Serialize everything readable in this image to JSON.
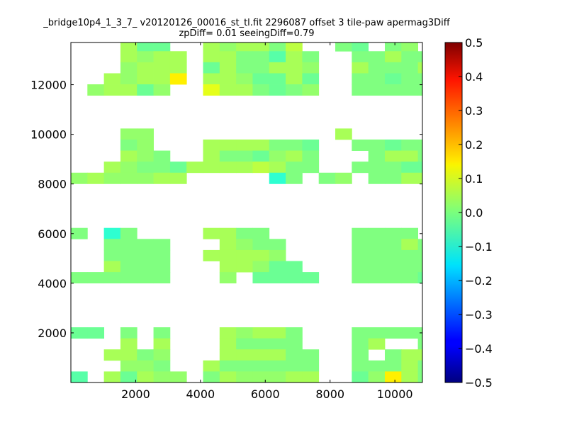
{
  "chart_data": {
    "type": "heatmap",
    "title": "_bridge10p4_1_3_7_ v20120126_00016_st_tl.fit 2296087 offset 3 tile-paw apermag3Diff",
    "subtitle": "zpDiff= 0.01 seeingDiff=0.79",
    "xlabel": "",
    "ylabel": "",
    "xlim": [
      0,
      10850
    ],
    "ylim": [
      0,
      13700
    ],
    "x_ticks": [
      "2000",
      "4000",
      "6000",
      "8000",
      "10000"
    ],
    "x_tick_values": [
      2000,
      4000,
      6000,
      8000,
      10000
    ],
    "y_ticks": [
      "2000",
      "4000",
      "6000",
      "8000",
      "10000",
      "12000"
    ],
    "y_tick_values": [
      2000,
      4000,
      6000,
      8000,
      10000,
      12000
    ],
    "colorbar": {
      "colormap": "jet",
      "vmin": -0.5,
      "vmax": 0.5,
      "ticks": [
        "0.5",
        "0.4",
        "0.3",
        "0.2",
        "0.1",
        "0.0",
        "−0.1",
        "−0.2",
        "−0.3",
        "−0.4",
        "−0.5"
      ],
      "tick_values": [
        0.5,
        0.4,
        0.3,
        0.2,
        0.1,
        0.0,
        -0.1,
        -0.2,
        -0.3,
        -0.4,
        -0.5
      ]
    },
    "grid": false,
    "cell_size": [
      510,
      445
    ],
    "value_key": {
      "a": 0.0,
      "b": 0.02,
      "c": 0.04,
      "d": -0.02,
      "e": -0.04,
      "f": 0.06,
      "g": -0.06,
      "h": 0.1,
      "i": 0.14,
      "j": 0.2,
      "k": -0.08
    },
    "rows_top_to_bottom": [
      "...cdd..cbccaf..ad.ab.....bccaa...",
      "...cbcc.ccaaeca..aacaa.c..ccacdc..",
      "...bccc.dcaaccb..caaac.dddbadbcc..",
      "..cbcci.ccbddcd..aadaab....babca..",
      ".bccdb..hccadab..aaaaaba....aaaaa.",
      "..................................",
      "..................................",
      "..................................",
      "...bb...........c.........aaaaa...",
      "...ab...ccccaad..aadaa.....cccaa.c",
      "...cba..caadbca...acca..dab.ab.ad.",
      "..cbaadccccfcaa..aaaddac....bcccaa",
      "bcbbbcc.....ka.ab.aaccaac...bcaada",
      "..................................",
      "..................................",
      "..................................",
      "..................................",
      "a.ka....ccaa.....aaaa.d.....dcca.b",
      "..aaaa...cbaa....aaaca.....cdaaac.",
      "..aaaa..ccccb....aaaaaa....da.ab.b",
      "..caaa...ccbdd...aaaaaa....dbacbfa",
      "aaaaaa...b.dddd..aaaadda....aaaa.a",
      "..................................",
      "..................................",
      "..................................",
      "..................................",
      "dd.a.a...cbcca...aaaaa.....acaaa..",
      "...c.c...caaaa...ac..a.....caaaaa.",
      "..ccab...ccccaa..a.accc....caaaa..",
      "...bba..caaaaaa..aaacaj...cbaaaaa.",
      "e.cdcbb.acbbbcc..dbicaa...caccaaa."
    ]
  }
}
